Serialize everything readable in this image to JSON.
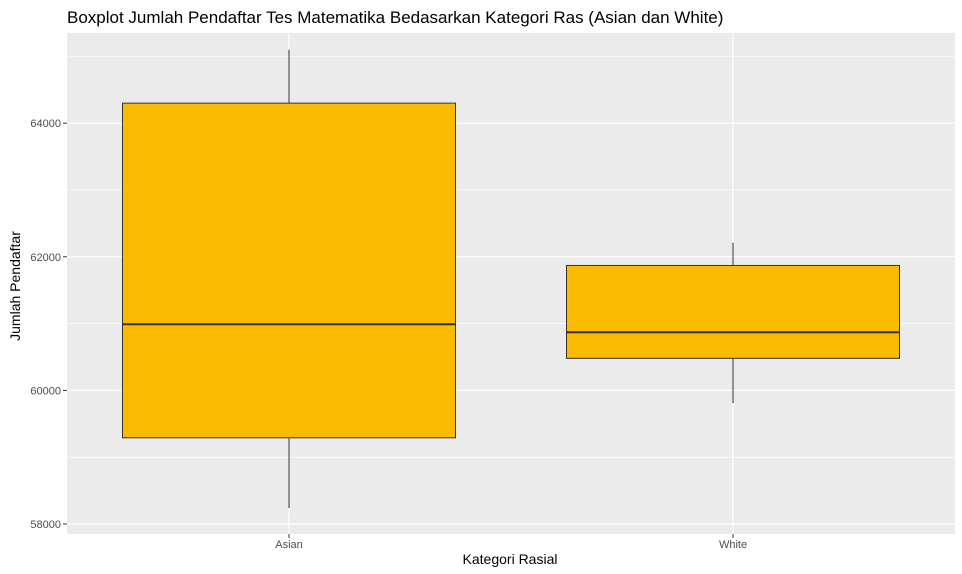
{
  "chart_data": {
    "type": "boxplot",
    "title": "Boxplot Jumlah Pendaftar Tes Matematika Bedasarkan Kategori Ras (Asian dan White)",
    "xlabel": "Kategori Rasial",
    "ylabel": "Jumlah Pendaftar",
    "categories": [
      "Asian",
      "White"
    ],
    "boxes": [
      {
        "category": "Asian",
        "whisker_low": 58240,
        "q1": 59290,
        "median": 60990,
        "q3": 64300,
        "whisker_high": 65100
      },
      {
        "category": "White",
        "whisker_low": 59810,
        "q1": 60480,
        "median": 60870,
        "q3": 61870,
        "whisker_high": 62210
      }
    ],
    "ylim": [
      57850,
      65350
    ],
    "yticks": [
      58000,
      60000,
      62000,
      64000
    ],
    "ytick_labels": [
      "58000",
      "60000",
      "62000",
      "64000"
    ],
    "grid": true,
    "box_fill": "#fcba03",
    "box_stroke": "#333333",
    "panel_background": "#ebebeb",
    "grid_color": "#ffffff"
  }
}
